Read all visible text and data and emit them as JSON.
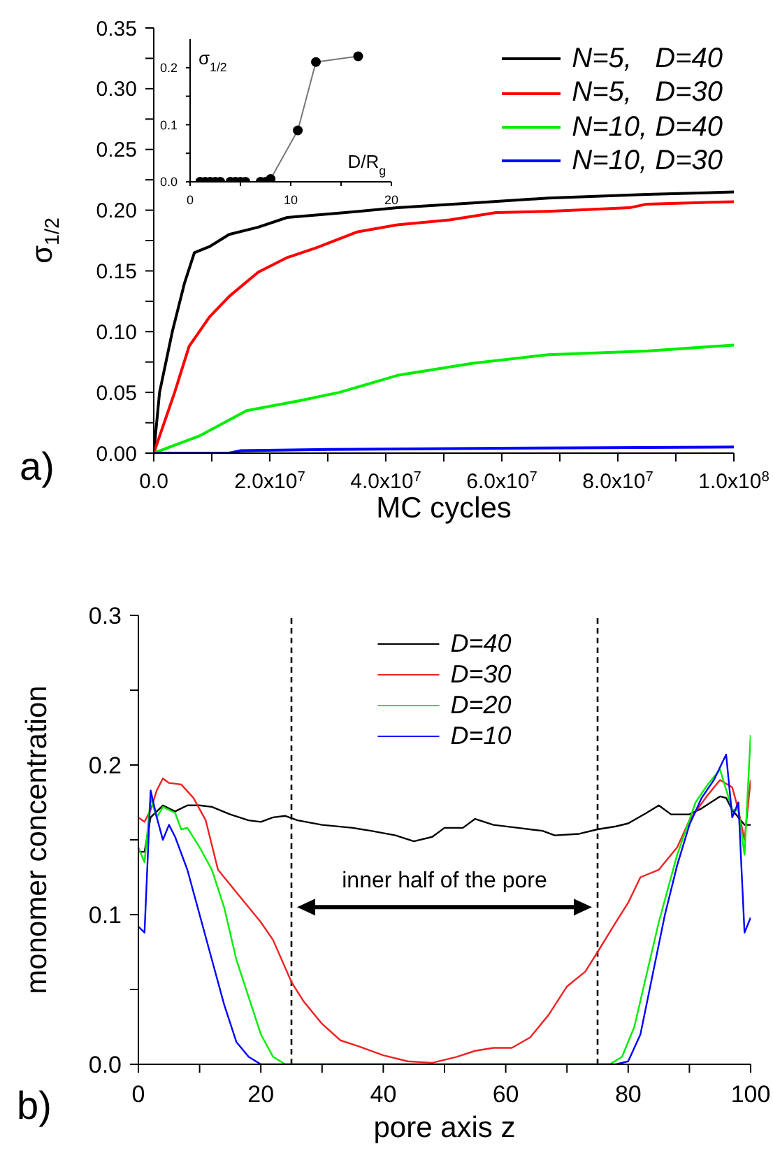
{
  "chart_data": [
    {
      "type": "line",
      "xlabel": "MC cycles",
      "ylabel": "σ$_{1/2}$",
      "xlim": [
        0,
        100000000
      ],
      "ylim": [
        0,
        0.35
      ],
      "xticks": [
        {
          "value": 0,
          "label": "0.0"
        },
        {
          "value": 10000000,
          "label": null
        },
        {
          "value": 20000000,
          "label": "2.0x10$^{7}$"
        },
        {
          "value": 30000000,
          "label": null
        },
        {
          "value": 40000000,
          "label": "4.0x10$^{7}$"
        },
        {
          "value": 50000000,
          "label": null
        },
        {
          "value": 60000000,
          "label": "6.0x10$^{7}$"
        },
        {
          "value": 70000000,
          "label": null
        },
        {
          "value": 80000000,
          "label": "8.0x10$^{7}$"
        },
        {
          "value": 90000000,
          "label": null
        },
        {
          "value": 100000000,
          "label": "1.0x10$^{8}$"
        }
      ],
      "yticks": [
        {
          "value": 0,
          "label": "0.00"
        },
        {
          "value": 0.025,
          "label": null
        },
        {
          "value": 0.05,
          "label": "0.05"
        },
        {
          "value": 0.075,
          "label": null
        },
        {
          "value": 0.1,
          "label": "0.10"
        },
        {
          "value": 0.125,
          "label": null
        },
        {
          "value": 0.15,
          "label": "0.15"
        },
        {
          "value": 0.175,
          "label": null
        },
        {
          "value": 0.2,
          "label": "0.20"
        },
        {
          "value": 0.225,
          "label": null
        },
        {
          "value": 0.25,
          "label": "0.25"
        },
        {
          "value": 0.275,
          "label": null
        },
        {
          "value": 0.3,
          "label": "0.30"
        },
        {
          "value": 0.325,
          "label": null
        },
        {
          "value": 0.35,
          "label": "0.35"
        }
      ],
      "legend": "top right",
      "annotations": [
        "a)"
      ],
      "series": [
        {
          "name": "N=5,   D=40",
          "color": "#000000",
          "x": [
            0,
            1000000,
            3200000,
            5300000,
            7000000,
            9600000,
            13000000,
            18000000,
            23000000,
            33000000,
            42000000,
            55000000,
            68000000,
            85000000,
            100000000
          ],
          "values": [
            0,
            0.05,
            0.1,
            0.14,
            0.165,
            0.17,
            0.18,
            0.186,
            0.194,
            0.198,
            0.202,
            0.206,
            0.21,
            0.213,
            0.215
          ]
        },
        {
          "name": "N=5,   D=30",
          "color": "#ff0000",
          "x": [
            0,
            3600000,
            6100000,
            9600000,
            13000000,
            18000000,
            23000000,
            28000000,
            35000000,
            42000000,
            51000000,
            59000000,
            68000000,
            82000000,
            85000000,
            100000000
          ],
          "values": [
            0,
            0.05,
            0.088,
            0.112,
            0.129,
            0.149,
            0.161,
            0.169,
            0.182,
            0.188,
            0.192,
            0.198,
            0.199,
            0.202,
            0.205,
            0.207
          ]
        },
        {
          "name": "N=10, D=40",
          "color": "#00ee00",
          "x": [
            0,
            7800000,
            16000000,
            25000000,
            32000000,
            42000000,
            55000000,
            68000000,
            85000000,
            100000000
          ],
          "values": [
            0,
            0.014,
            0.035,
            0.043,
            0.05,
            0.064,
            0.074,
            0.081,
            0.084,
            0.089
          ]
        },
        {
          "name": "N=10, D=30",
          "color": "#0000ff",
          "x": [
            0,
            13000000,
            15000000,
            30000000,
            60000000,
            100000000
          ],
          "values": [
            0,
            0,
            0.002,
            0.003,
            0.004,
            0.005
          ]
        }
      ]
    },
    {
      "type": "line",
      "xlabel": "D/R$_{g}$",
      "ylabel": "σ$_{1/2}$",
      "xlim": [
        0,
        20
      ],
      "ylim": [
        0,
        0.25
      ],
      "xticks": [
        0,
        {
          "value": 5,
          "label": null
        },
        10,
        {
          "value": 15,
          "label": null
        },
        20
      ],
      "yticks": [
        {
          "value": 0,
          "label": "0.0"
        },
        {
          "value": 0.05,
          "label": null
        },
        {
          "value": 0.1,
          "label": "0.1"
        },
        {
          "value": 0.15,
          "label": null
        },
        {
          "value": 0.2,
          "label": "0.2"
        }
      ],
      "marker": "circle",
      "series": [
        {
          "color": "#000000",
          "x": [
            1,
            1.5,
            2,
            2.5,
            3,
            4,
            4.5,
            5,
            5.5,
            7,
            7.5,
            8,
            10.7,
            12.5,
            16.7
          ],
          "values": [
            0,
            0,
            0,
            0,
            0,
            0,
            0,
            0,
            0,
            0,
            0,
            0.005,
            0.09,
            0.21,
            0.22
          ]
        }
      ]
    },
    {
      "type": "line",
      "xlabel": "pore axis z",
      "ylabel": "monomer concentration",
      "xlim": [
        0,
        100
      ],
      "ylim": [
        0,
        0.3
      ],
      "xticks": [
        0,
        {
          "value": 10,
          "label": null
        },
        20,
        {
          "value": 30,
          "label": null
        },
        40,
        {
          "value": 50,
          "label": null
        },
        60,
        {
          "value": 70,
          "label": null
        },
        80,
        {
          "value": 90,
          "label": null
        },
        100
      ],
      "yticks": [
        {
          "value": 0,
          "label": "0.0"
        },
        {
          "value": 0.05,
          "label": null
        },
        {
          "value": 0.1,
          "label": "0.1"
        },
        {
          "value": 0.15,
          "label": null
        },
        {
          "value": 0.2,
          "label": "0.2"
        },
        {
          "value": 0.25,
          "label": null
        },
        {
          "value": 0.3,
          "label": "0.3"
        }
      ],
      "legend": "top",
      "ref_lines": [
        {
          "axis": "x",
          "value": 25,
          "color": "#000000",
          "line_style": "dashed"
        },
        {
          "axis": "x",
          "value": 75,
          "color": "#000000",
          "line_style": "dashed"
        }
      ],
      "annotations": [
        "b)",
        "inner half of the pore"
      ],
      "series": [
        {
          "name": "D=40",
          "color": "#000000",
          "x": [
            0,
            1,
            2,
            4,
            6,
            8,
            10,
            12,
            15,
            18,
            20,
            22,
            24,
            26,
            30,
            35,
            38,
            42,
            45,
            48,
            50,
            53,
            55,
            58,
            62,
            66,
            68,
            72,
            75,
            78,
            80,
            83,
            85,
            87,
            90,
            92,
            95,
            96,
            97,
            99,
            100
          ],
          "values": [
            0.142,
            0.142,
            0.165,
            0.173,
            0.169,
            0.173,
            0.173,
            0.172,
            0.167,
            0.163,
            0.162,
            0.165,
            0.166,
            0.163,
            0.16,
            0.158,
            0.156,
            0.153,
            0.149,
            0.152,
            0.158,
            0.158,
            0.164,
            0.16,
            0.158,
            0.156,
            0.153,
            0.154,
            0.157,
            0.159,
            0.161,
            0.168,
            0.173,
            0.167,
            0.167,
            0.171,
            0.179,
            0.178,
            0.17,
            0.16,
            0.16
          ]
        },
        {
          "name": "D=30",
          "color": "#ee2222",
          "x": [
            0,
            1,
            2,
            3,
            4,
            5,
            7,
            9,
            11,
            13,
            16,
            20,
            22,
            25,
            27,
            30,
            33,
            36,
            40,
            44,
            48,
            52,
            55,
            58,
            61,
            64,
            67,
            70,
            73,
            75,
            78,
            80,
            82,
            85,
            88,
            90,
            93,
            95,
            97,
            98,
            99,
            100
          ],
          "values": [
            0.165,
            0.162,
            0.17,
            0.183,
            0.191,
            0.188,
            0.187,
            0.178,
            0.163,
            0.13,
            0.115,
            0.095,
            0.083,
            0.055,
            0.042,
            0.027,
            0.016,
            0.012,
            0.006,
            0.002,
            0.001,
            0.005,
            0.009,
            0.011,
            0.011,
            0.018,
            0.033,
            0.052,
            0.062,
            0.075,
            0.095,
            0.108,
            0.125,
            0.13,
            0.145,
            0.163,
            0.18,
            0.19,
            0.185,
            0.17,
            0.15,
            0.19
          ]
        },
        {
          "name": "D=20",
          "color": "#00ee00",
          "x": [
            0,
            1,
            2,
            3,
            4,
            6,
            7,
            8,
            10,
            12,
            14,
            16,
            18,
            20,
            22,
            24,
            77,
            79,
            81,
            83,
            85,
            88,
            91,
            93,
            95,
            97,
            98,
            99,
            100
          ],
          "values": [
            0.145,
            0.135,
            0.178,
            0.165,
            0.172,
            0.168,
            0.157,
            0.158,
            0.145,
            0.13,
            0.105,
            0.07,
            0.045,
            0.02,
            0.005,
            0,
            0,
            0.005,
            0.025,
            0.06,
            0.095,
            0.14,
            0.175,
            0.187,
            0.197,
            0.17,
            0.17,
            0.14,
            0.22
          ]
        },
        {
          "name": "D=10",
          "color": "#0000ff",
          "x": [
            0,
            1,
            2,
            3,
            4,
            5,
            6,
            8,
            10,
            12,
            14,
            16,
            18,
            20,
            78,
            80,
            82,
            84,
            86,
            88,
            90,
            92,
            94,
            96,
            97,
            98,
            99,
            100
          ],
          "values": [
            0.092,
            0.088,
            0.183,
            0.165,
            0.15,
            0.16,
            0.152,
            0.13,
            0.1,
            0.07,
            0.04,
            0.015,
            0.005,
            0,
            0,
            0.002,
            0.02,
            0.06,
            0.1,
            0.133,
            0.16,
            0.178,
            0.19,
            0.207,
            0.165,
            0.175,
            0.088,
            0.098
          ]
        }
      ]
    }
  ]
}
